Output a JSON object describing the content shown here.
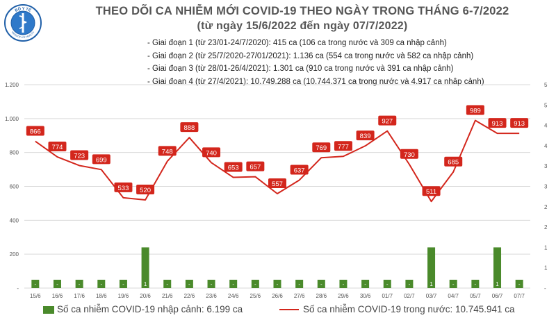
{
  "header": {
    "logo_text": "BỘ Y TẾ",
    "logo_subtext": "MINISTRY OF HEALTH",
    "title": "THEO DÕI CA NHIỄM MỚI COVID-19 THEO NGÀY TRONG THÁNG 6-7/2022",
    "subtitle": "(từ ngày 15/6/2022 đến ngày 07/7/2022)"
  },
  "stages": [
    "- Giai đoạn 1 (từ 23/01-24/7/2020): 415 ca (106 ca trong nước và 309 ca nhập cảnh)",
    "- Giai đoạn 2 (từ 25/7/2020-27/01/2021): 1.136 ca (554 ca trong nước và 582 ca nhập cảnh)",
    "- Giai đoạn 3 (từ 28/01-26/4/2021): 1.301 ca (910 ca trong nước và 391 ca nhập cảnh)",
    "- Giai đoạn 4 (từ 27/4/2021): 10.749.288 ca (10.744.371 ca trong nước và 4.917 ca nhập cảnh)"
  ],
  "legend": {
    "imported": "Số ca nhiễm COVID-19 nhập cảnh: 6.199 ca",
    "domestic": "Số ca nhiễm COVID-19 trong nước: 10.745.941 ca"
  },
  "colors": {
    "bar": "#4a8a2b",
    "line": "#d3261c",
    "label_bg": "#d3261c",
    "grid": "#d9d9d9"
  },
  "chart_data": {
    "type": "bar",
    "categories": [
      "15/6",
      "16/6",
      "17/6",
      "18/6",
      "19/6",
      "20/6",
      "21/6",
      "22/6",
      "23/6",
      "24/6",
      "25/6",
      "26/6",
      "27/6",
      "28/6",
      "29/6",
      "30/6",
      "01/7",
      "02/7",
      "03/7",
      "04/7",
      "05/7",
      "06/7",
      "07/7"
    ],
    "left_ticks": [
      "-",
      "200",
      "400",
      "600",
      "800",
      "1.000",
      "1.200"
    ],
    "right_ticks": [
      "-",
      "1",
      "1",
      "2",
      "2",
      "3",
      "3",
      "4",
      "4",
      "5",
      "5"
    ],
    "ylim_left": [
      0,
      1200
    ],
    "ylim_right": [
      0,
      5
    ],
    "series": [
      {
        "name": "Số ca nhiễm COVID-19 trong nước",
        "type": "line",
        "axis": "left",
        "values": [
          866,
          774,
          723,
          699,
          533,
          520,
          748,
          888,
          740,
          653,
          657,
          557,
          637,
          769,
          777,
          839,
          927,
          730,
          511,
          685,
          989,
          913,
          913
        ],
        "labels": [
          "866",
          "774",
          "723",
          "699",
          "533",
          "520",
          "748",
          "888",
          "740",
          "653",
          "657",
          "557",
          "637",
          "769",
          "777",
          "839",
          "927",
          "730",
          "511",
          "685",
          "989",
          "913",
          "913"
        ]
      },
      {
        "name": "Số ca nhiễm COVID-19 nhập cảnh",
        "type": "bar",
        "axis": "right",
        "values": [
          0,
          0,
          0,
          0,
          0,
          1,
          0,
          0,
          0,
          0,
          0,
          0,
          0,
          0,
          0,
          0,
          0,
          0,
          1,
          0,
          0,
          1,
          0
        ],
        "labels": [
          "-",
          "-",
          "-",
          "-",
          "-",
          "1",
          "-",
          "-",
          "-",
          "-",
          "-",
          "-",
          "-",
          "-",
          "-",
          "-",
          "-",
          "-",
          "1",
          "-",
          "-",
          "1",
          "-"
        ]
      }
    ]
  }
}
